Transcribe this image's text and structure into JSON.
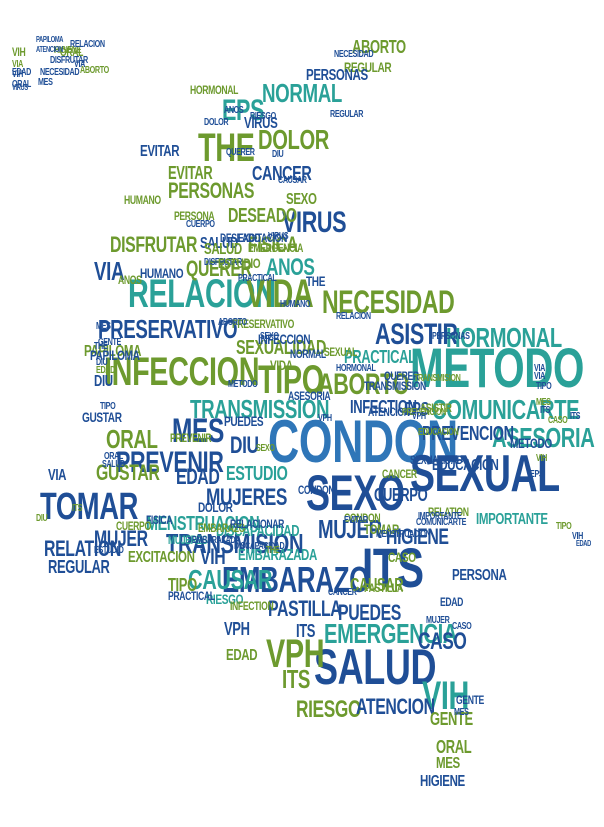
{
  "palette": {
    "navy": "#1f4e96",
    "blue": "#2f76b8",
    "teal": "#2aa198",
    "green": "#6d9a2e",
    "lime": "#93bf3c"
  },
  "words": [
    {
      "text": "CONDON",
      "c": "blue"
    },
    {
      "text": "SEXUAL",
      "c": "navy"
    },
    {
      "text": "METODO",
      "c": "teal"
    },
    {
      "text": "SEXO",
      "c": "navy"
    },
    {
      "text": "ITS",
      "c": "navy"
    },
    {
      "text": "SALUD",
      "c": "navy"
    },
    {
      "text": "RELACION",
      "c": "teal"
    },
    {
      "text": "VIDA",
      "c": "green"
    },
    {
      "text": "INFECCION",
      "c": "green"
    },
    {
      "text": "EMBARAZO",
      "c": "navy"
    },
    {
      "text": "PRESERVATIVO",
      "c": "navy"
    },
    {
      "text": "TOMAR",
      "c": "navy"
    },
    {
      "text": "THE",
      "c": "green"
    },
    {
      "text": "NECESIDAD",
      "c": "green"
    },
    {
      "text": "ASISTIR",
      "c": "navy"
    },
    {
      "text": "COMUNICARTE",
      "c": "teal"
    },
    {
      "text": "HORMONAL",
      "c": "teal"
    },
    {
      "text": "TRANSMISION",
      "c": "navy"
    },
    {
      "text": "EMERGENCIA",
      "c": "teal"
    },
    {
      "text": "VPH",
      "c": "green"
    },
    {
      "text": "VIH",
      "c": "teal"
    },
    {
      "text": "EPS",
      "c": "teal"
    },
    {
      "text": "MUJERES",
      "c": "navy"
    },
    {
      "text": "MUJER",
      "c": "navy"
    },
    {
      "text": "ABORTO",
      "c": "green"
    },
    {
      "text": "TIPO",
      "c": "green"
    },
    {
      "text": "PREVENIR",
      "c": "navy"
    },
    {
      "text": "GUSTAR",
      "c": "green"
    },
    {
      "text": "ORAL",
      "c": "green"
    },
    {
      "text": "MES",
      "c": "navy"
    },
    {
      "text": "CAUSAR",
      "c": "teal"
    },
    {
      "text": "ASESORIA",
      "c": "teal"
    },
    {
      "text": "PREVENCION",
      "c": "navy"
    },
    {
      "text": "TRANSMISSION",
      "c": "teal"
    },
    {
      "text": "DOLOR",
      "c": "green"
    },
    {
      "text": "PERSONAS",
      "c": "green"
    },
    {
      "text": "NORMAL",
      "c": "teal"
    },
    {
      "text": "VIRUS",
      "c": "navy"
    },
    {
      "text": "DISFRUTAR",
      "c": "green"
    },
    {
      "text": "VIA",
      "c": "navy"
    },
    {
      "text": "ANOS",
      "c": "teal"
    },
    {
      "text": "QUERER",
      "c": "green"
    },
    {
      "text": "FISICA",
      "c": "green"
    },
    {
      "text": "SALUD",
      "c": "navy"
    },
    {
      "text": "DESEADO",
      "c": "green"
    },
    {
      "text": "SEXO",
      "c": "green"
    },
    {
      "text": "EVITAR",
      "c": "green"
    },
    {
      "text": "CANCER",
      "c": "navy"
    },
    {
      "text": "PASTILLA",
      "c": "navy"
    },
    {
      "text": "PERSONA",
      "c": "navy"
    },
    {
      "text": "HIGIENE",
      "c": "navy"
    },
    {
      "text": "RIESGO",
      "c": "green"
    },
    {
      "text": "ATENCION",
      "c": "navy"
    },
    {
      "text": "GENTE",
      "c": "green"
    },
    {
      "text": "CASO",
      "c": "navy"
    },
    {
      "text": "ESTUDIO",
      "c": "teal"
    },
    {
      "text": "EDAD",
      "c": "navy"
    },
    {
      "text": "CUERPO",
      "c": "navy"
    },
    {
      "text": "RELATION",
      "c": "navy"
    },
    {
      "text": "REGULAR",
      "c": "navy"
    },
    {
      "text": "PRACTICAL",
      "c": "teal"
    },
    {
      "text": "MENSTRUACION",
      "c": "teal"
    },
    {
      "text": "EXCITACION",
      "c": "green"
    },
    {
      "text": "SEXUALIDAD",
      "c": "green"
    },
    {
      "text": "EMBARAZADA",
      "c": "teal"
    },
    {
      "text": "DISCAPACIDAD",
      "c": "teal"
    },
    {
      "text": "INFECTION",
      "c": "navy"
    },
    {
      "text": "PUEDES",
      "c": "navy"
    },
    {
      "text": "DIU",
      "c": "navy"
    },
    {
      "text": "PAPILOMA",
      "c": "green"
    },
    {
      "text": "HUMANO",
      "c": "navy"
    },
    {
      "text": "EDUCACION",
      "c": "navy"
    },
    {
      "text": "IMPORTANTE",
      "c": "teal"
    },
    {
      "text": "ITS",
      "c": "green"
    },
    {
      "text": "VIH",
      "c": "navy"
    },
    {
      "text": "ORAL",
      "c": "green"
    },
    {
      "text": "MES",
      "c": "green"
    },
    {
      "text": "HIGIENE",
      "c": "navy"
    },
    {
      "text": "MUJER",
      "c": "navy"
    },
    {
      "text": "SALUD",
      "c": "green"
    },
    {
      "text": "VIRUS",
      "c": "navy"
    },
    {
      "text": "ABORTO",
      "c": "green"
    },
    {
      "text": "REGULAR",
      "c": "green"
    },
    {
      "text": "PERSONAS",
      "c": "navy"
    },
    {
      "text": "NECESIDAD",
      "c": "navy"
    },
    {
      "text": "DISFRUTAR",
      "c": "navy"
    },
    {
      "text": "VIA",
      "c": "navy"
    },
    {
      "text": "ATENCION",
      "c": "navy"
    },
    {
      "text": "PAPILOMA",
      "c": "navy"
    },
    {
      "text": "RELACION",
      "c": "navy"
    },
    {
      "text": "CAUSAR",
      "c": "green"
    },
    {
      "text": "TIPO",
      "c": "green"
    },
    {
      "text": "PUEDES",
      "c": "navy"
    },
    {
      "text": "TOMAR",
      "c": "green"
    },
    {
      "text": "EVITAR",
      "c": "navy"
    },
    {
      "text": "DOLOR",
      "c": "navy"
    },
    {
      "text": "CASO",
      "c": "green"
    },
    {
      "text": "EPS",
      "c": "navy"
    },
    {
      "text": "DIU",
      "c": "navy"
    },
    {
      "text": "VIDA",
      "c": "green"
    },
    {
      "text": "METODO",
      "c": "navy"
    },
    {
      "text": "EDAD",
      "c": "green"
    },
    {
      "text": "GENTE",
      "c": "navy"
    },
    {
      "text": "SEXUAL",
      "c": "green"
    },
    {
      "text": "CONDON",
      "c": "navy"
    },
    {
      "text": "ESTUDIO",
      "c": "green"
    },
    {
      "text": "CANCER",
      "c": "green"
    },
    {
      "text": "ITS",
      "c": "navy"
    },
    {
      "text": "VPH",
      "c": "navy"
    },
    {
      "text": "MUJERES",
      "c": "teal"
    },
    {
      "text": "PASTILLA",
      "c": "green"
    },
    {
      "text": "DESEADO",
      "c": "navy"
    },
    {
      "text": "RIESGO",
      "c": "teal"
    },
    {
      "text": "QUERER",
      "c": "navy"
    },
    {
      "text": "GUSTAR",
      "c": "navy"
    },
    {
      "text": "HUMANO",
      "c": "green"
    },
    {
      "text": "FISICA",
      "c": "navy"
    },
    {
      "text": "PERSONA",
      "c": "green"
    },
    {
      "text": "TRANSMISSION",
      "c": "navy"
    },
    {
      "text": "INFECTION",
      "c": "green"
    },
    {
      "text": "EMBARAZO",
      "c": "green"
    },
    {
      "text": "HORMONAL",
      "c": "green"
    },
    {
      "text": "THE",
      "c": "navy"
    },
    {
      "text": "PREVENIR",
      "c": "green"
    },
    {
      "text": "ANOS",
      "c": "green"
    },
    {
      "text": "CUERPO",
      "c": "green"
    },
    {
      "text": "RELATION",
      "c": "green"
    },
    {
      "text": "PRACTICAL",
      "c": "navy"
    },
    {
      "text": "NORMAL",
      "c": "navy"
    },
    {
      "text": "INFECCION",
      "c": "navy"
    },
    {
      "text": "EDUCACION",
      "c": "green"
    },
    {
      "text": "ASESORIA",
      "c": "navy"
    },
    {
      "text": "EXCITACION",
      "c": "navy"
    },
    {
      "text": "SEXUALIDAD",
      "c": "navy"
    },
    {
      "text": "MENSTRUACION",
      "c": "navy"
    },
    {
      "text": "EMERGENCIA",
      "c": "green"
    },
    {
      "text": "COMUNICARTE",
      "c": "navy"
    },
    {
      "text": "RELACIONAR",
      "c": "navy"
    },
    {
      "text": "ASISTIR",
      "c": "green"
    },
    {
      "text": "PREVENCION",
      "c": "green"
    },
    {
      "text": "TRANSMISION",
      "c": "green"
    },
    {
      "text": "IMPORTANTE",
      "c": "navy"
    },
    {
      "text": "PRESERVATIVO",
      "c": "green"
    },
    {
      "text": "EMBARAZADA",
      "c": "navy"
    },
    {
      "text": "DISCAPACIDAD",
      "c": "navy"
    },
    {
      "text": "CONDON",
      "c": "green"
    },
    {
      "text": "VIH",
      "c": "green"
    },
    {
      "text": "MES",
      "c": "navy"
    },
    {
      "text": "VIA",
      "c": "green"
    },
    {
      "text": "ORAL",
      "c": "navy"
    },
    {
      "text": "HIGIENE",
      "c": "green"
    },
    {
      "text": "EDAD",
      "c": "navy"
    },
    {
      "text": "VIH",
      "c": "navy"
    },
    {
      "text": "VIRUS",
      "c": "navy"
    },
    {
      "text": "ORAL",
      "c": "green"
    },
    {
      "text": "ATENCION",
      "c": "navy"
    },
    {
      "text": "PAPILOMA",
      "c": "navy"
    },
    {
      "text": "RELACION",
      "c": "navy"
    },
    {
      "text": "ABORTO",
      "c": "green"
    },
    {
      "text": "VIA",
      "c": "navy"
    },
    {
      "text": "DISFRUTAR",
      "c": "navy"
    },
    {
      "text": "NECESIDAD",
      "c": "navy"
    },
    {
      "text": "REGULAR",
      "c": "navy"
    },
    {
      "text": "PERSONAS",
      "c": "navy"
    },
    {
      "text": "METODO",
      "c": "navy"
    },
    {
      "text": "HORMONAL",
      "c": "navy"
    },
    {
      "text": "VPH",
      "c": "navy"
    },
    {
      "text": "ABORTO",
      "c": "navy"
    },
    {
      "text": "MUJER",
      "c": "navy"
    },
    {
      "text": "QUERER",
      "c": "navy"
    },
    {
      "text": "CAUSAR",
      "c": "navy"
    },
    {
      "text": "CANCER",
      "c": "navy"
    },
    {
      "text": "PRACTICAL",
      "c": "navy"
    },
    {
      "text": "ANOS",
      "c": "navy"
    },
    {
      "text": "VIRUS",
      "c": "navy"
    },
    {
      "text": "TIPO",
      "c": "green"
    },
    {
      "text": "SEXO",
      "c": "navy"
    },
    {
      "text": "DIU",
      "c": "navy"
    },
    {
      "text": "MES",
      "c": "navy"
    },
    {
      "text": "ITS",
      "c": "navy"
    },
    {
      "text": "EDAD",
      "c": "navy"
    },
    {
      "text": "VIH",
      "c": "navy"
    },
    {
      "text": "CASO",
      "c": "navy"
    },
    {
      "text": "TIPO",
      "c": "navy"
    },
    {
      "text": "THE",
      "c": "navy"
    },
    {
      "text": "DIU",
      "c": "navy"
    },
    {
      "text": "VIA",
      "c": "navy"
    },
    {
      "text": "ITS",
      "c": "navy"
    },
    {
      "text": "MES",
      "c": "navy"
    },
    {
      "text": "SALUD",
      "c": "navy"
    },
    {
      "text": "EDAD",
      "c": "navy"
    },
    {
      "text": "CASO",
      "c": "green"
    },
    {
      "text": "ORAL",
      "c": "navy"
    },
    {
      "text": "VPH",
      "c": "navy"
    },
    {
      "text": "EPS",
      "c": "navy"
    },
    {
      "text": "MES",
      "c": "green"
    },
    {
      "text": "ITS",
      "c": "green"
    },
    {
      "text": "TIPO",
      "c": "navy"
    },
    {
      "text": "VIA",
      "c": "navy"
    },
    {
      "text": "EDAD",
      "c": "green"
    },
    {
      "text": "DIU",
      "c": "green"
    },
    {
      "text": "VIH",
      "c": "green"
    },
    {
      "text": "GENTE",
      "c": "navy"
    },
    {
      "text": "SEXO",
      "c": "green"
    },
    {
      "text": "THE",
      "c": "green"
    },
    {
      "text": "ESTUDIO",
      "c": "navy"
    },
    {
      "text": "CUERPO",
      "c": "navy"
    },
    {
      "text": "RIESGO",
      "c": "navy"
    },
    {
      "text": "HUMANO",
      "c": "navy"
    },
    {
      "text": "EVITAR",
      "c": "navy"
    },
    {
      "text": "DOLOR",
      "c": "navy"
    },
    {
      "text": "FISICA",
      "c": "navy"
    },
    {
      "text": "PUEDES",
      "c": "green"
    }
  ]
}
